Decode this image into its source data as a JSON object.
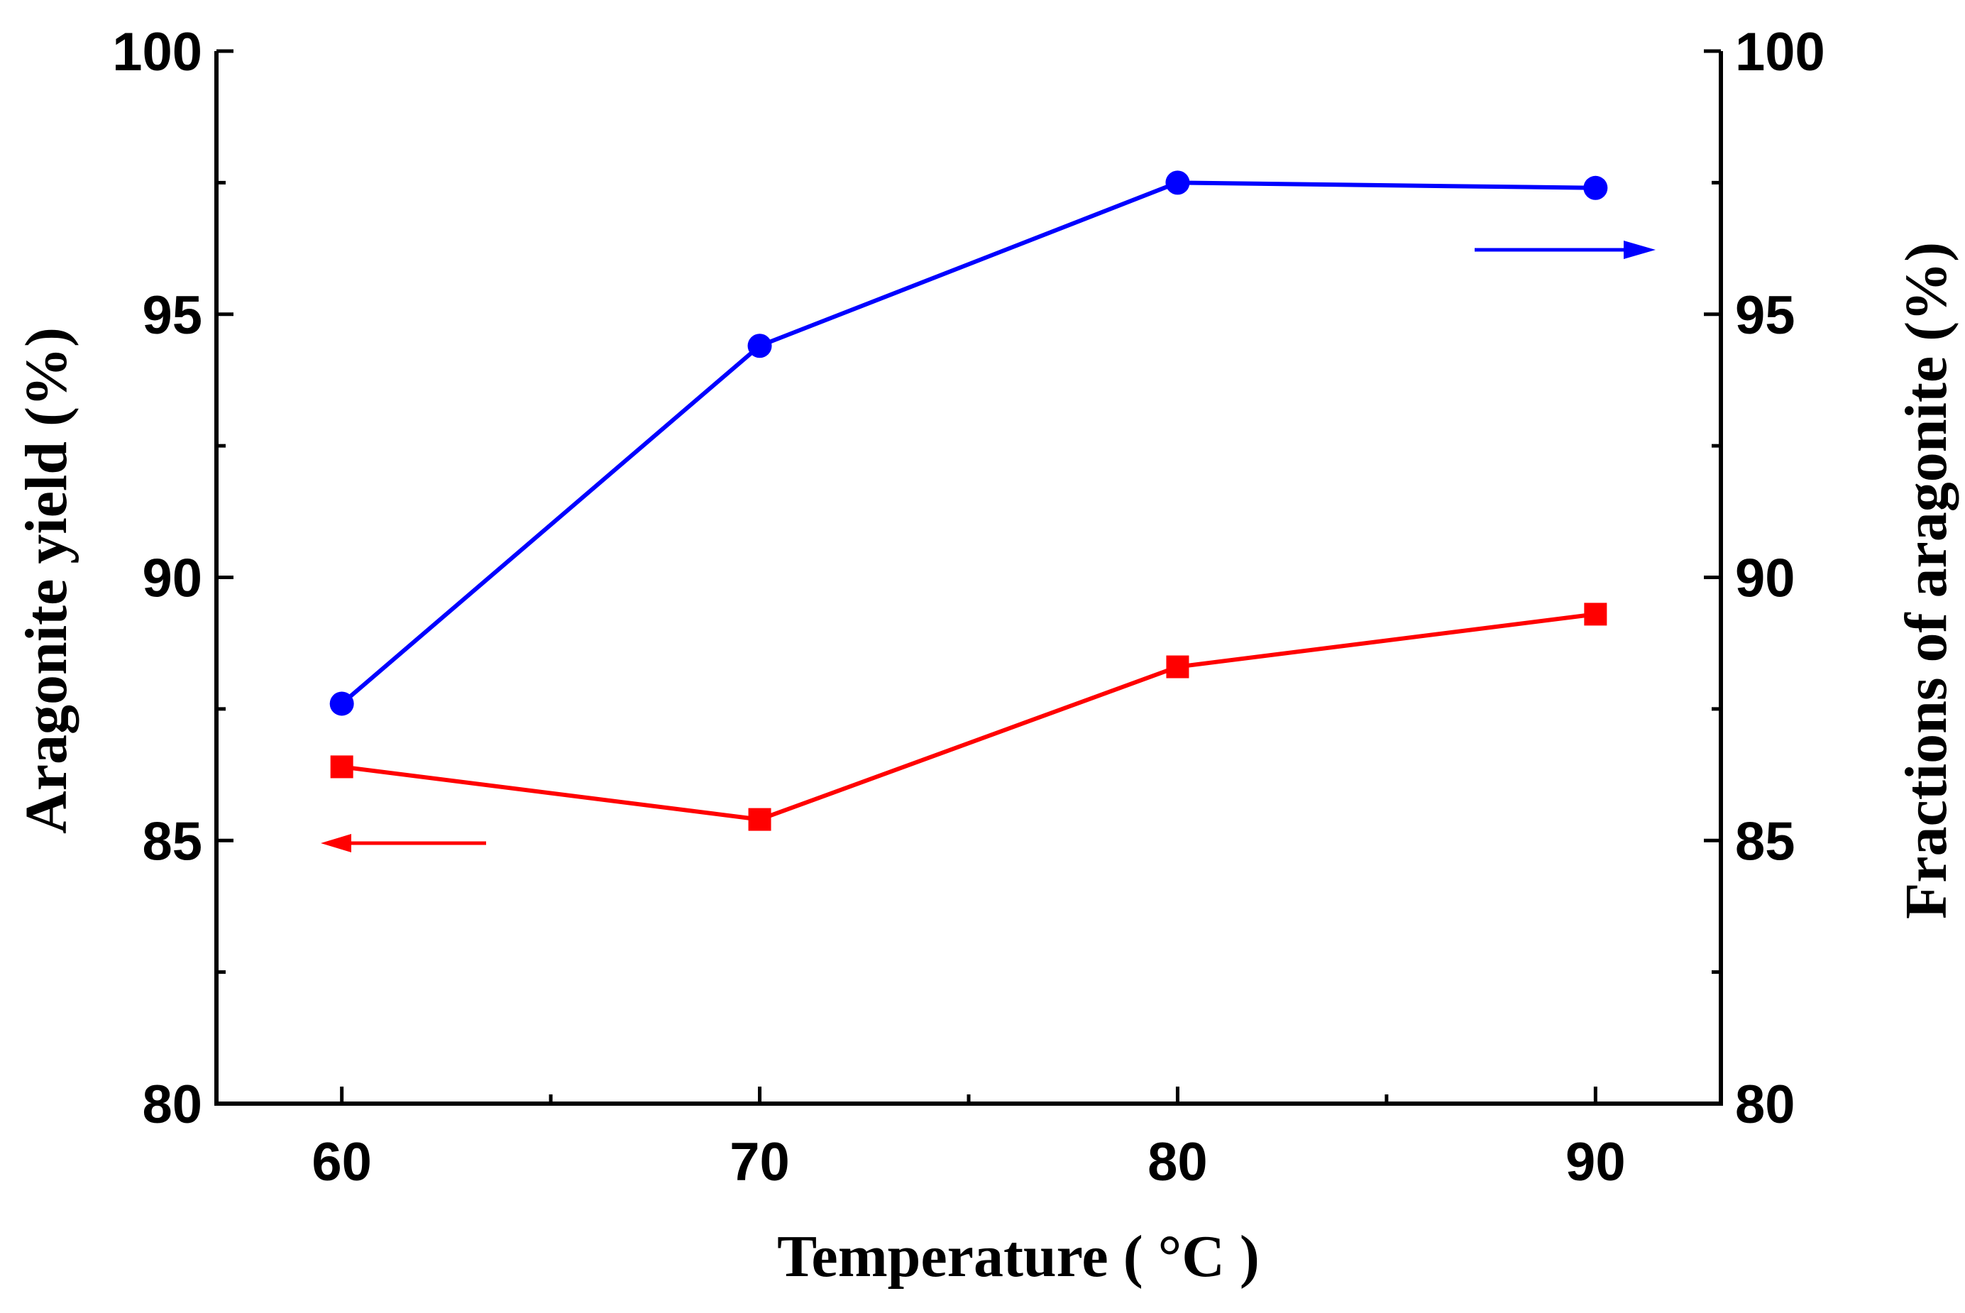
{
  "chart_data": {
    "type": "line",
    "title": "",
    "xlabel": "Temperature ( °C )",
    "ylabel_left": "Aragonite yield (%)",
    "ylabel_right": "Fractions  of aragonite (%)",
    "xlim": [
      57,
      93
    ],
    "ylim": [
      80,
      100
    ],
    "x_ticks": [
      60,
      70,
      80,
      90
    ],
    "x_minor_ticks": [
      65,
      75,
      85
    ],
    "y_ticks": [
      80,
      85,
      90,
      95,
      100
    ],
    "y_minor_ticks": [
      82.5,
      87.5,
      92.5,
      97.5
    ],
    "x_tick_labels": [
      "60",
      "70",
      "80",
      "90"
    ],
    "y_tick_labels_left": [
      "80",
      "85",
      "90",
      "95",
      "100"
    ],
    "y_tick_labels_right": [
      "80",
      "85",
      "90",
      "95",
      "100"
    ],
    "grid": false,
    "series": [
      {
        "name": "Aragonite yield",
        "axis": "left",
        "marker": "square",
        "color": "#ff0000",
        "x": [
          60,
          70,
          80,
          90
        ],
        "values": [
          86.4,
          85.4,
          88.3,
          89.3
        ],
        "indicator_arrow": "left"
      },
      {
        "name": "Fractions of aragonite",
        "axis": "right",
        "marker": "circle",
        "color": "#0000ff",
        "x": [
          60,
          70,
          80,
          90
        ],
        "values": [
          87.6,
          94.4,
          97.5,
          97.4
        ],
        "indicator_arrow": "right"
      }
    ]
  }
}
